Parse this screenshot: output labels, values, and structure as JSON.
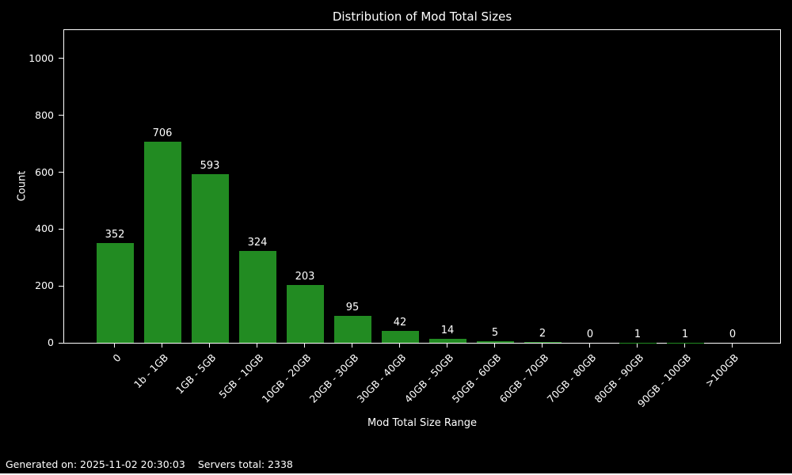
{
  "figure": {
    "background_color": "#000000",
    "text_color": "#ffffff"
  },
  "chart_data": {
    "type": "bar",
    "title": "Distribution of Mod Total Sizes",
    "xlabel": "Mod Total Size Range",
    "ylabel": "Count",
    "categories": [
      "0",
      "1b - 1GB",
      "1GB - 5GB",
      "5GB - 10GB",
      "10GB - 20GB",
      "20GB - 30GB",
      "30GB - 40GB",
      "40GB - 50GB",
      "50GB - 60GB",
      "60GB - 70GB",
      "70GB - 80GB",
      "80GB - 90GB",
      "90GB - 100GB",
      ">100GB"
    ],
    "values": [
      352,
      706,
      593,
      324,
      203,
      95,
      42,
      14,
      5,
      2,
      0,
      1,
      1,
      0
    ],
    "ylim": [
      0,
      1100
    ],
    "yticks": [
      0,
      200,
      400,
      600,
      800,
      1000
    ],
    "bar_color": "#228b22",
    "grid": false,
    "legend": "none",
    "x_tick_rotation_deg": 45
  },
  "footer": {
    "generated_label": "Generated on: 2025-11-02 20:30:03",
    "servers_total_label": "Servers total: 2338"
  }
}
